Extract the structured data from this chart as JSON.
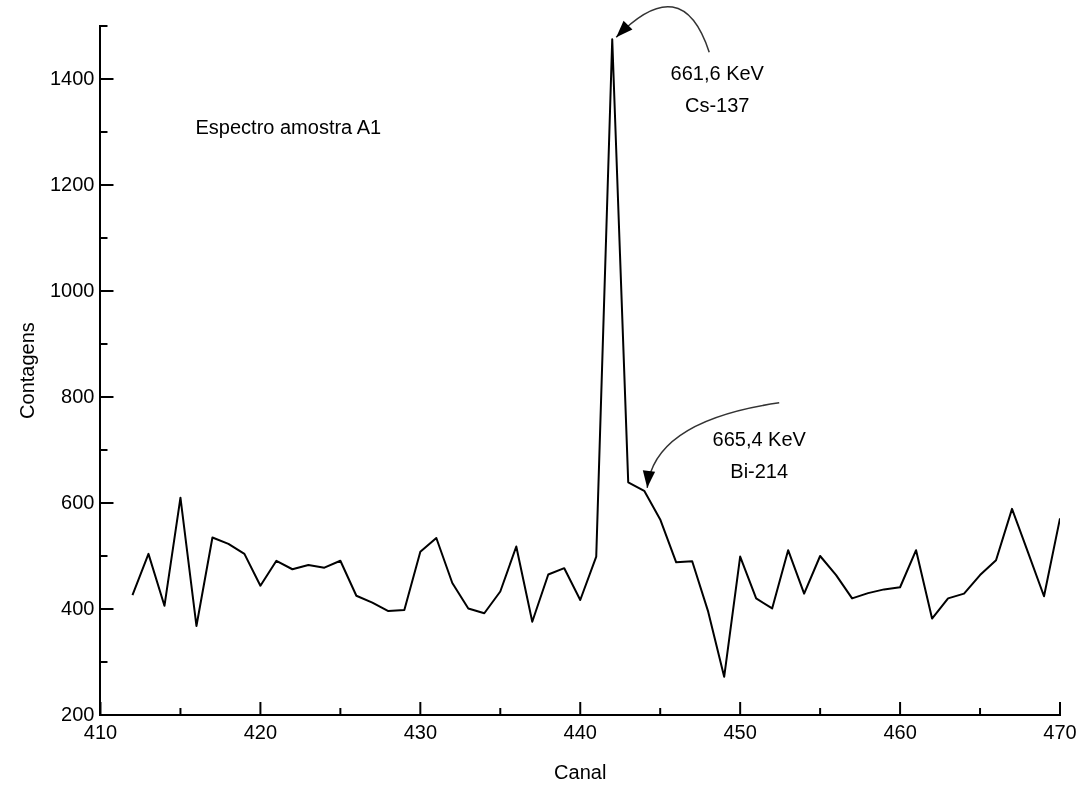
{
  "chart_data": {
    "type": "line",
    "xlabel": "Canal",
    "ylabel": "Contagens",
    "x": [
      412,
      413,
      414,
      415,
      416,
      417,
      418,
      419,
      420,
      421,
      422,
      423,
      424,
      425,
      426,
      427,
      428,
      429,
      430,
      431,
      432,
      433,
      434,
      435,
      436,
      437,
      438,
      439,
      440,
      441,
      442,
      443,
      444,
      445,
      446,
      447,
      448,
      449,
      450,
      451,
      452,
      453,
      454,
      455,
      456,
      457,
      458,
      459,
      460,
      461,
      462,
      463,
      464,
      465,
      466,
      467,
      468,
      469,
      470
    ],
    "series": [
      {
        "color": "#000000",
        "values": [
          426,
          504,
          406,
          610,
          368,
          535,
          523,
          504,
          444,
          491,
          475,
          483,
          478,
          491,
          425,
          412,
          396,
          398,
          508,
          534,
          449,
          401,
          392,
          433,
          518,
          376,
          465,
          477,
          417,
          499,
          1475,
          639,
          623,
          569,
          488,
          490,
          395,
          272,
          499,
          420,
          401,
          511,
          429,
          500,
          464,
          420,
          430,
          437,
          441,
          511,
          382,
          420,
          429,
          464,
          492,
          589,
          507,
          424,
          571
        ]
      }
    ],
    "xlim": [
      410,
      470
    ],
    "xticks": [
      410,
      {
        "value": 415,
        "label": null
      },
      420,
      {
        "value": 425,
        "label": null
      },
      430,
      {
        "value": 435,
        "label": null
      },
      440,
      {
        "value": 445,
        "label": null
      },
      450,
      {
        "value": 455,
        "label": null
      },
      460,
      {
        "value": 465,
        "label": null
      },
      470
    ],
    "ylim": [
      200,
      1500
    ],
    "yticks": [
      200,
      {
        "value": 300,
        "label": null
      },
      400,
      {
        "value": 500,
        "label": null
      },
      600,
      {
        "value": 700,
        "label": null
      },
      800,
      {
        "value": 900,
        "label": null
      },
      1000,
      {
        "value": 1100,
        "label": null
      },
      1200,
      {
        "value": 1300,
        "label": null
      },
      1400,
      {
        "value": 1500,
        "label": null
      }
    ],
    "grid": false,
    "legend": false,
    "marker": "none",
    "line_style": "solid",
    "annotations": [
      "Espectro amostra A1",
      {
        "text": "661,6 KeV\nCs-137",
        "x": 442,
        "y": 1475
      },
      {
        "text": "665,4 KeV\nBi-214",
        "x": 444,
        "y": 623
      }
    ]
  }
}
